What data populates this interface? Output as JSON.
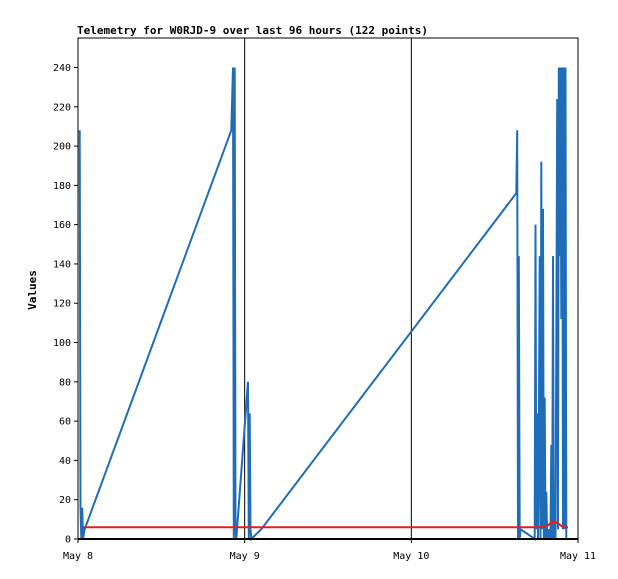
{
  "chart_data": {
    "type": "line",
    "title": "Telemetry for W0RJD-9 over last 96 hours (122 points)",
    "xlabel": "",
    "ylabel": "Values",
    "xlim": [
      "May 8",
      "May 11"
    ],
    "ylim": [
      0,
      255
    ],
    "grid": false,
    "legend": "none",
    "x_ticks": [
      "May 8",
      "May 9",
      "May 10",
      "May 11"
    ],
    "y_ticks": [
      0,
      20,
      40,
      60,
      80,
      100,
      120,
      140,
      160,
      180,
      200,
      220,
      240
    ],
    "x_unit": "days since May 8 00:00",
    "series": [
      {
        "name": "",
        "color": "#1f6db8",
        "x": [
          0.01,
          0.015,
          0.02,
          0.025,
          0.03,
          0.04,
          0.92,
          0.93,
          0.935,
          0.94,
          0.945,
          0.95,
          1.02,
          1.025,
          1.03,
          1.035,
          1.04,
          1.1,
          2.63,
          2.635,
          2.64,
          2.645,
          2.65,
          2.655,
          2.74,
          2.745,
          2.75,
          2.755,
          2.76,
          2.76,
          2.765,
          2.77,
          2.775,
          2.78,
          2.785,
          2.79,
          2.795,
          2.8,
          2.805,
          2.81,
          2.815,
          2.82,
          2.825,
          2.83,
          2.835,
          2.84,
          2.845,
          2.85,
          2.855,
          2.86,
          2.865,
          2.87,
          2.875,
          2.88,
          2.885,
          2.89,
          2.895,
          2.9,
          2.905,
          2.91,
          2.915,
          2.92,
          2.925,
          2.93,
          2.935
        ],
        "values": [
          208,
          16,
          0,
          16,
          0,
          5,
          208,
          240,
          0,
          240,
          5,
          0,
          80,
          0,
          64,
          5,
          0,
          5,
          176,
          208,
          0,
          144,
          0,
          5,
          0,
          160,
          5,
          64,
          0,
          0,
          48,
          144,
          0,
          192,
          5,
          168,
          0,
          72,
          0,
          24,
          0,
          5,
          0,
          5,
          0,
          48,
          0,
          144,
          0,
          16,
          0,
          96,
          224,
          5,
          240,
          144,
          240,
          112,
          240,
          5,
          240,
          5,
          240,
          0,
          0
        ]
      },
      {
        "name": "",
        "color": "#e02020",
        "x": [
          0.03,
          0.5,
          1.0,
          1.5,
          2.0,
          2.5,
          2.78,
          2.82,
          2.85,
          2.88,
          2.91,
          2.94
        ],
        "values": [
          6,
          6,
          6,
          6,
          6,
          6,
          6,
          7,
          9,
          8,
          6,
          6
        ]
      }
    ]
  }
}
